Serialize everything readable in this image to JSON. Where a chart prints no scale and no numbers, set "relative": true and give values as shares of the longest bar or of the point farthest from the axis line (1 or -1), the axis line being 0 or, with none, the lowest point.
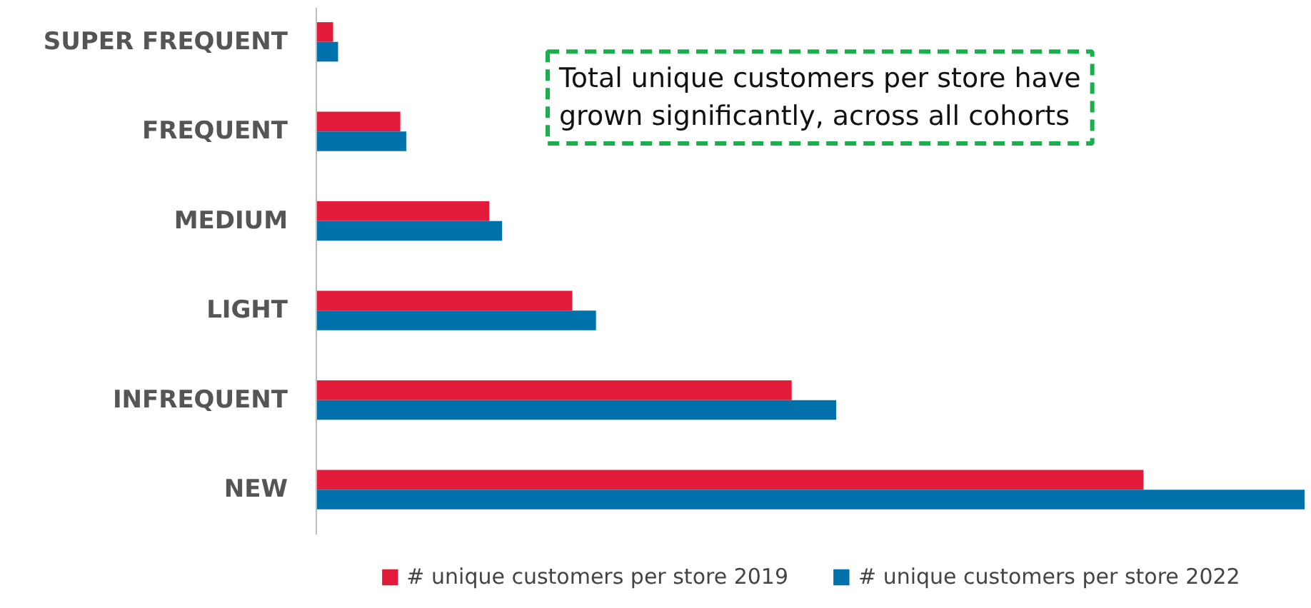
{
  "chart_data": {
    "type": "bar",
    "orientation": "horizontal",
    "relative": true,
    "categories": [
      "SUPER FREQUENT",
      "FREQUENT",
      "MEDIUM",
      "LIGHT",
      "INFREQUENT",
      "NEW"
    ],
    "series": [
      {
        "name": "# unique customers per store 2019",
        "color": "#e31b3b",
        "values": [
          0.017,
          0.085,
          0.175,
          0.259,
          0.481,
          0.837
        ]
      },
      {
        "name": "# unique customers per store 2022",
        "color": "#0071ab",
        "values": [
          0.022,
          0.091,
          0.188,
          0.283,
          0.526,
          1
        ]
      }
    ],
    "annotations": [
      "Total unique customers per store have grown significantly, across all cohorts"
    ],
    "legend": "bottom",
    "grid": false
  }
}
